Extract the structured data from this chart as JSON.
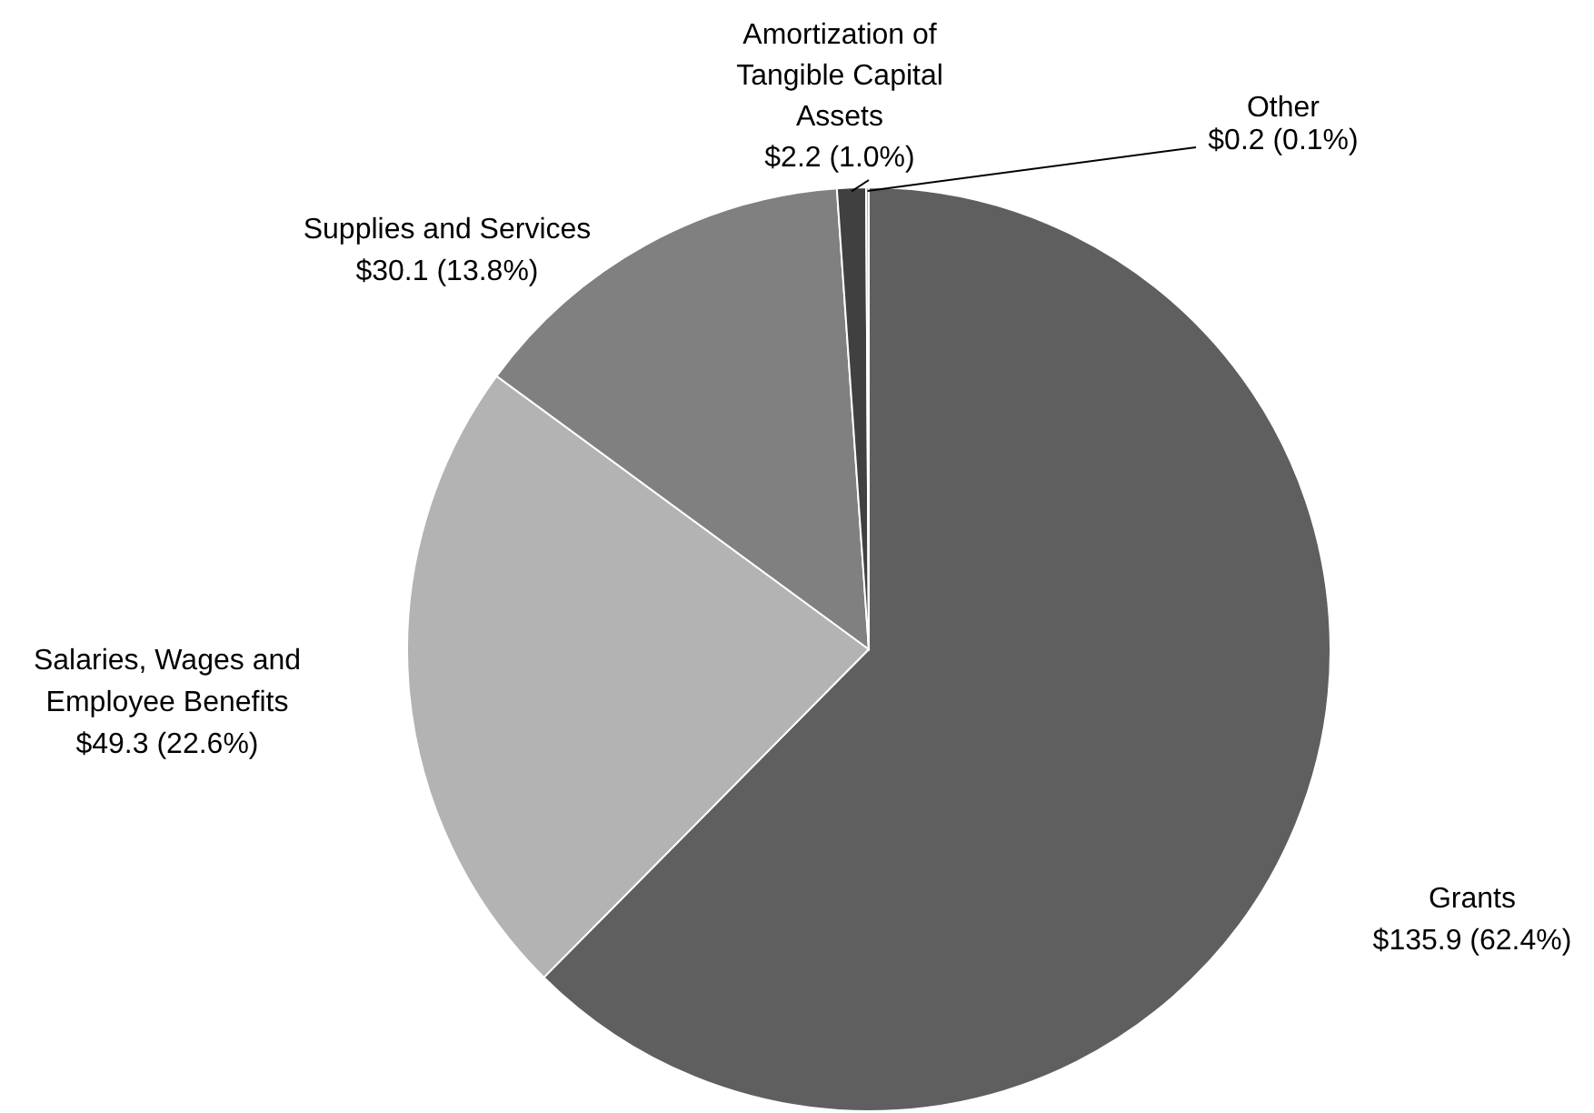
{
  "chart_data": {
    "type": "pie",
    "categories": [
      "Grants",
      "Salaries, Wages and Employee Benefits",
      "Supplies and Services",
      "Amortization of Tangible Capital Assets",
      "Other"
    ],
    "values": [
      135.9,
      49.3,
      30.1,
      2.2,
      0.2
    ],
    "value_labels": [
      "$135.9 (62.4%)",
      "$49.3 (22.6%)",
      "$30.1 (13.8%)",
      "$2.2 (1.0%)",
      "$0.2 (0.1%)"
    ],
    "colors": [
      "#5f5f5f",
      "#b3b3b3",
      "#808080",
      "#404040",
      "#a6a6a6"
    ]
  }
}
